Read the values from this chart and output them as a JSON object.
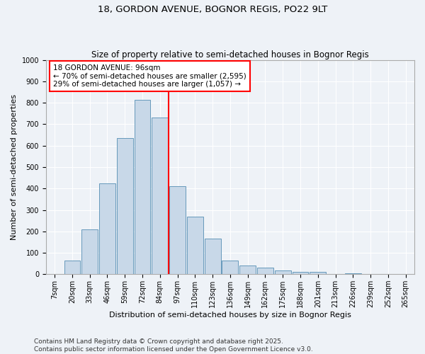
{
  "title_line1": "18, GORDON AVENUE, BOGNOR REGIS, PO22 9LT",
  "title_line2": "Size of property relative to semi-detached houses in Bognor Regis",
  "xlabel": "Distribution of semi-detached houses by size in Bognor Regis",
  "ylabel": "Number of semi-detached properties",
  "categories": [
    "7sqm",
    "20sqm",
    "33sqm",
    "46sqm",
    "59sqm",
    "72sqm",
    "84sqm",
    "97sqm",
    "110sqm",
    "123sqm",
    "136sqm",
    "149sqm",
    "162sqm",
    "175sqm",
    "188sqm",
    "201sqm",
    "213sqm",
    "226sqm",
    "239sqm",
    "252sqm",
    "265sqm"
  ],
  "bar_values": [
    0,
    65,
    210,
    425,
    635,
    815,
    730,
    410,
    270,
    165,
    65,
    40,
    30,
    18,
    10,
    10,
    0,
    5,
    0,
    0,
    0
  ],
  "bar_color": "#c8d8e8",
  "bar_edge_color": "#6699bb",
  "vline_color": "red",
  "annotation_text": "18 GORDON AVENUE: 96sqm\n← 70% of semi-detached houses are smaller (2,595)\n29% of semi-detached houses are larger (1,057) →",
  "annotation_box_color": "white",
  "annotation_box_edge": "red",
  "ylim": [
    0,
    1000
  ],
  "yticks": [
    0,
    100,
    200,
    300,
    400,
    500,
    600,
    700,
    800,
    900,
    1000
  ],
  "bg_color": "#eef2f7",
  "footer_text": "Contains HM Land Registry data © Crown copyright and database right 2025.\nContains public sector information licensed under the Open Government Licence v3.0.",
  "title_fontsize": 9.5,
  "subtitle_fontsize": 8.5,
  "axis_label_fontsize": 8,
  "tick_fontsize": 7,
  "annotation_fontsize": 7.5,
  "footer_fontsize": 6.5
}
